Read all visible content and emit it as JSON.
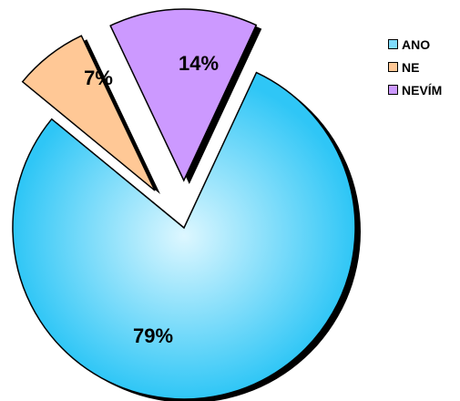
{
  "chart_data": {
    "type": "pie",
    "categories": [
      "ANO",
      "NE",
      "NEVÍM"
    ],
    "values": [
      79,
      7,
      14
    ],
    "data_labels": [
      "79%",
      "7%",
      "14%"
    ],
    "colors": [
      "#7fdcfd",
      "#ffc896",
      "#cc99ff"
    ],
    "legend_position": "right",
    "exploded": [
      false,
      true,
      true
    ],
    "shadow": true
  }
}
